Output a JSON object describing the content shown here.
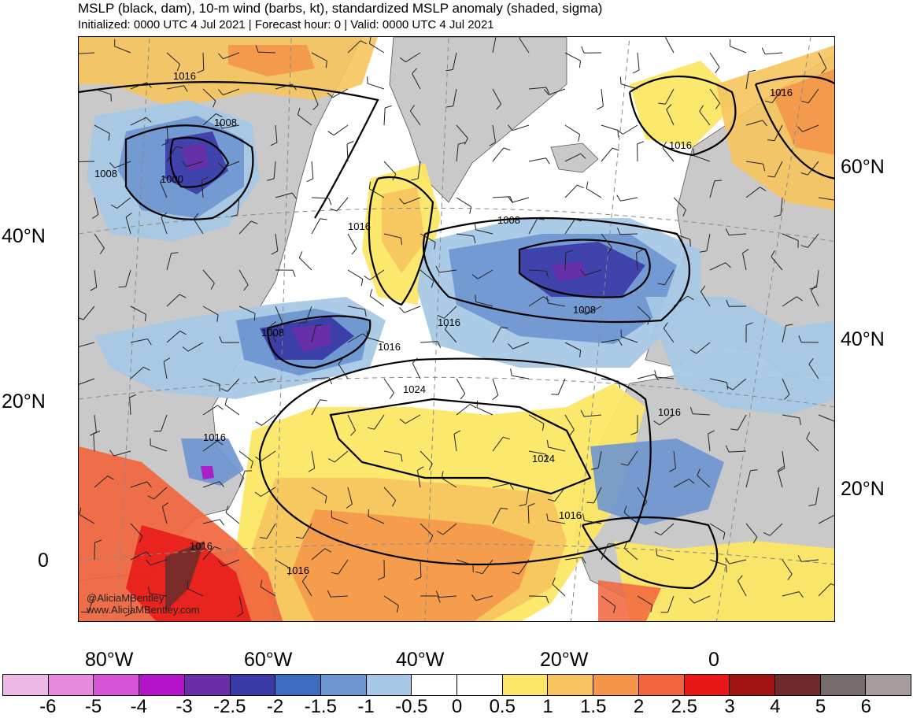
{
  "title": "MSLP (black, dam), 10-m wind (barbs, kt), standardized MSLP anomaly (shaded, sigma)",
  "subtitle": "Initialized: 0000 UTC 4 Jul 2021 | Forecast hour: 0 | Valid: 0000 UTC 4 Jul 2021",
  "credit": {
    "handle": "@AliciaMBentley",
    "site": "www.AliciaMBentley.com"
  },
  "axes": {
    "lat_left": [
      "40°N",
      "20°N",
      "0"
    ],
    "lat_right": [
      "60°N",
      "40°N",
      "20°N"
    ],
    "lon_bottom": [
      "80°W",
      "60°W",
      "40°W",
      "20°W",
      "0"
    ]
  },
  "isobar_labels": [
    "1016",
    "1008",
    "1008",
    "1000",
    "1016",
    "1008",
    "1016",
    "1008",
    "1016",
    "1008",
    "1016",
    "1024",
    "1024",
    "1016",
    "1016",
    "1016",
    "1016",
    "1016",
    "1016"
  ],
  "colorbar": {
    "ticks": [
      "-6",
      "-5",
      "-4",
      "-3",
      "-2.5",
      "-2",
      "-1.5",
      "-1",
      "-0.5",
      "0",
      "0.5",
      "1",
      "1.5",
      "2",
      "2.5",
      "3",
      "4",
      "5",
      "6"
    ],
    "colors": [
      "#ecb9e6",
      "#e68ae0",
      "#d554d6",
      "#b313c9",
      "#6a2fa8",
      "#3a3aa6",
      "#3c6bc0",
      "#6d95d0",
      "#a6c8e6",
      "#ffffff",
      "#ffffff",
      "#fbe765",
      "#f6c45e",
      "#f4954a",
      "#f2643c",
      "#e81818",
      "#a11212",
      "#6f2b2b",
      "#756b6b",
      "#a89b9b"
    ]
  },
  "map_colors": {
    "land": "#c9c9c9",
    "ocean": "#ffffff",
    "isobar": "#000000"
  }
}
